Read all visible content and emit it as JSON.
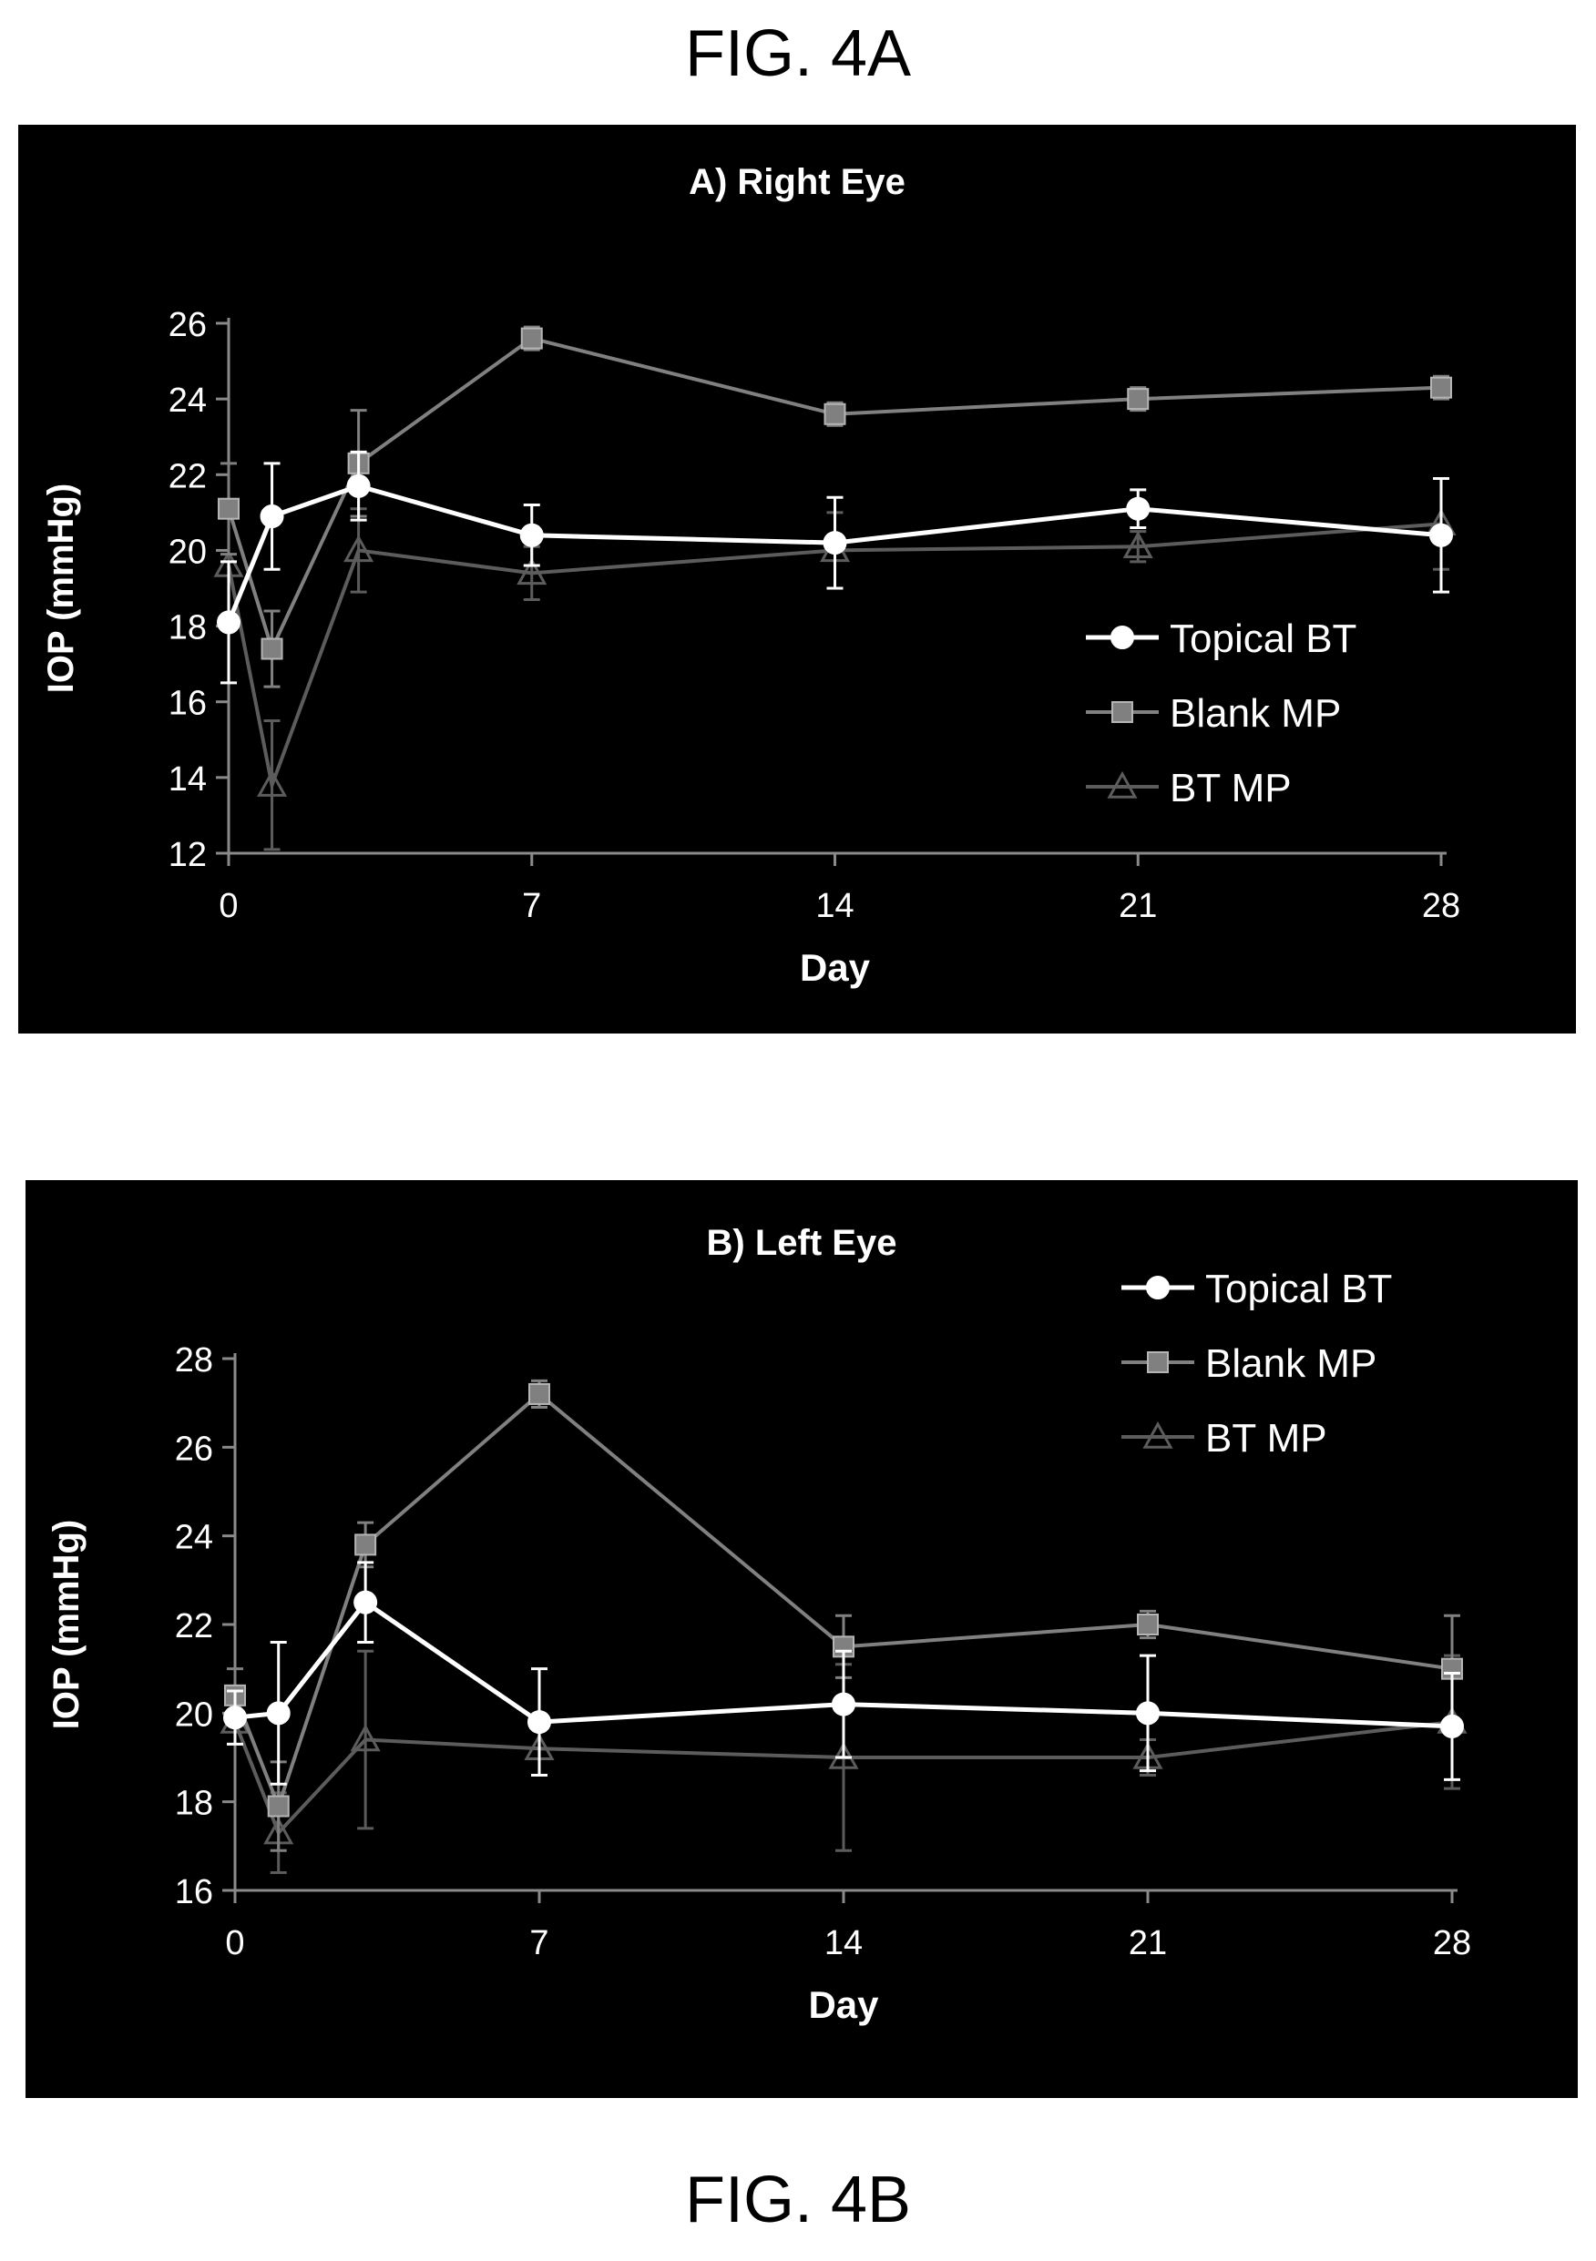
{
  "figure_labels": {
    "top": "FIG. 4A",
    "bottom": "FIG. 4B"
  },
  "colors": {
    "background": "#000000",
    "axis": "#8a8a8a",
    "text": "#ffffff",
    "topical_bt": "#ffffff",
    "blank_mp": "#808080",
    "bt_mp": "#5c5c5c"
  },
  "chart_data": [
    {
      "type": "line",
      "title": "A) Right Eye",
      "xlabel": "Day",
      "ylabel": "IOP (mmHg)",
      "x_ticks": [
        0,
        7,
        14,
        21,
        28
      ],
      "y_ticks": [
        12,
        14,
        16,
        18,
        20,
        22,
        24,
        26
      ],
      "xlim": [
        0,
        28
      ],
      "ylim": [
        12,
        26
      ],
      "grid": false,
      "legend_position": "right",
      "x": [
        0,
        1,
        3,
        7,
        14,
        21,
        28
      ],
      "series": [
        {
          "name": "Topical BT",
          "marker": "circle",
          "values": [
            18.1,
            20.9,
            21.7,
            20.4,
            20.2,
            21.1,
            20.4
          ],
          "errors": [
            1.6,
            1.4,
            0.9,
            0.8,
            1.2,
            0.5,
            1.5
          ]
        },
        {
          "name": "Blank MP",
          "marker": "square",
          "values": [
            21.1,
            17.4,
            22.3,
            25.6,
            23.6,
            24.0,
            24.3
          ],
          "errors": [
            1.2,
            1.0,
            1.4,
            0.3,
            0.3,
            0.3,
            0.3
          ]
        },
        {
          "name": "BT MP",
          "marker": "triangle",
          "values": [
            19.6,
            13.8,
            20.0,
            19.4,
            20.0,
            20.1,
            20.7
          ],
          "errors": [
            1.3,
            1.7,
            1.1,
            0.7,
            1.0,
            0.4,
            1.2
          ]
        }
      ]
    },
    {
      "type": "line",
      "title": "B) Left Eye",
      "xlabel": "Day",
      "ylabel": "IOP (mmHg)",
      "x_ticks": [
        0,
        7,
        14,
        21,
        28
      ],
      "y_ticks": [
        16,
        18,
        20,
        22,
        24,
        26,
        28
      ],
      "xlim": [
        0,
        28
      ],
      "ylim": [
        16,
        28
      ],
      "grid": false,
      "legend_position": "top-right",
      "x": [
        0,
        1,
        3,
        7,
        14,
        21,
        28
      ],
      "series": [
        {
          "name": "Topical BT",
          "marker": "circle",
          "values": [
            19.9,
            20.0,
            22.5,
            19.8,
            20.2,
            20.0,
            19.7
          ],
          "errors": [
            0.6,
            1.6,
            0.9,
            1.2,
            1.2,
            1.3,
            1.2
          ]
        },
        {
          "name": "Blank MP",
          "marker": "square",
          "values": [
            20.4,
            17.9,
            23.8,
            27.2,
            21.5,
            22.0,
            21.0
          ],
          "errors": [
            0.6,
            1.0,
            0.5,
            0.3,
            0.7,
            0.3,
            1.2
          ]
        },
        {
          "name": "BT MP",
          "marker": "triangle",
          "values": [
            19.8,
            17.3,
            19.4,
            19.2,
            19.0,
            19.0,
            19.8
          ],
          "errors": [
            0.5,
            0.9,
            2.0,
            0.6,
            2.1,
            0.4,
            1.5
          ]
        }
      ]
    }
  ]
}
